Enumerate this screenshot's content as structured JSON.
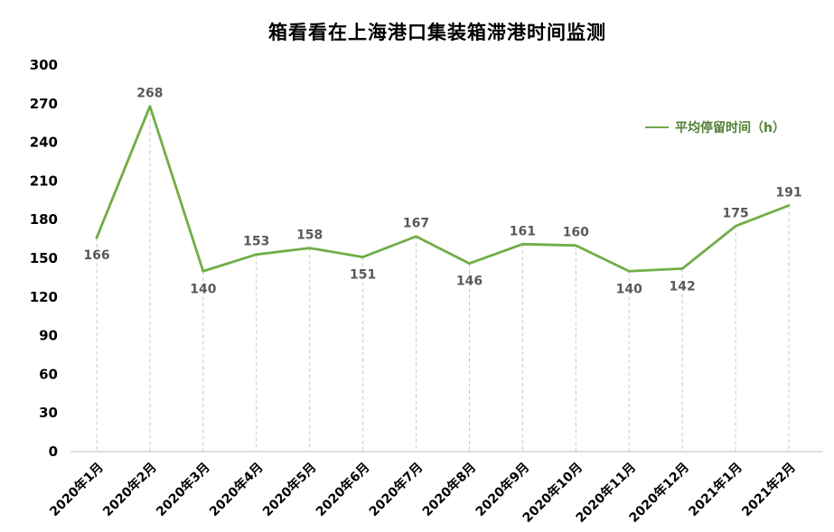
{
  "chart_data": {
    "type": "line",
    "title": "箱看看在上海港口集装箱滞港时间监测",
    "categories": [
      "2020年1月",
      "2020年2月",
      "2020年3月",
      "2020年4月",
      "2020年5月",
      "2020年6月",
      "2020年7月",
      "2020年8月",
      "2020年9月",
      "2020年10月",
      "2020年11月",
      "2020年12月",
      "2021年1月",
      "2021年2月"
    ],
    "series": [
      {
        "name": "平均停留时间（h）",
        "color": "#70AD47",
        "values": [
          166,
          268,
          140,
          153,
          158,
          151,
          167,
          146,
          161,
          160,
          140,
          142,
          175,
          191
        ]
      }
    ],
    "xlabel": "",
    "ylabel": "",
    "ylim": [
      0,
      300
    ],
    "ytick_step": 30,
    "grid": "vertical-drop-lines-dashed",
    "legend_position": "right-upper",
    "label_positions": [
      "below",
      "above",
      "below",
      "above",
      "above",
      "below",
      "above",
      "below",
      "above",
      "above",
      "below",
      "below",
      "above",
      "above"
    ]
  },
  "colors": {
    "line": "#70AD47",
    "legend_text": "#538135",
    "data_label": "#595959",
    "axis": "#bfbfbf",
    "gridline": "#c9c9c9",
    "tick_label": "#000000"
  }
}
